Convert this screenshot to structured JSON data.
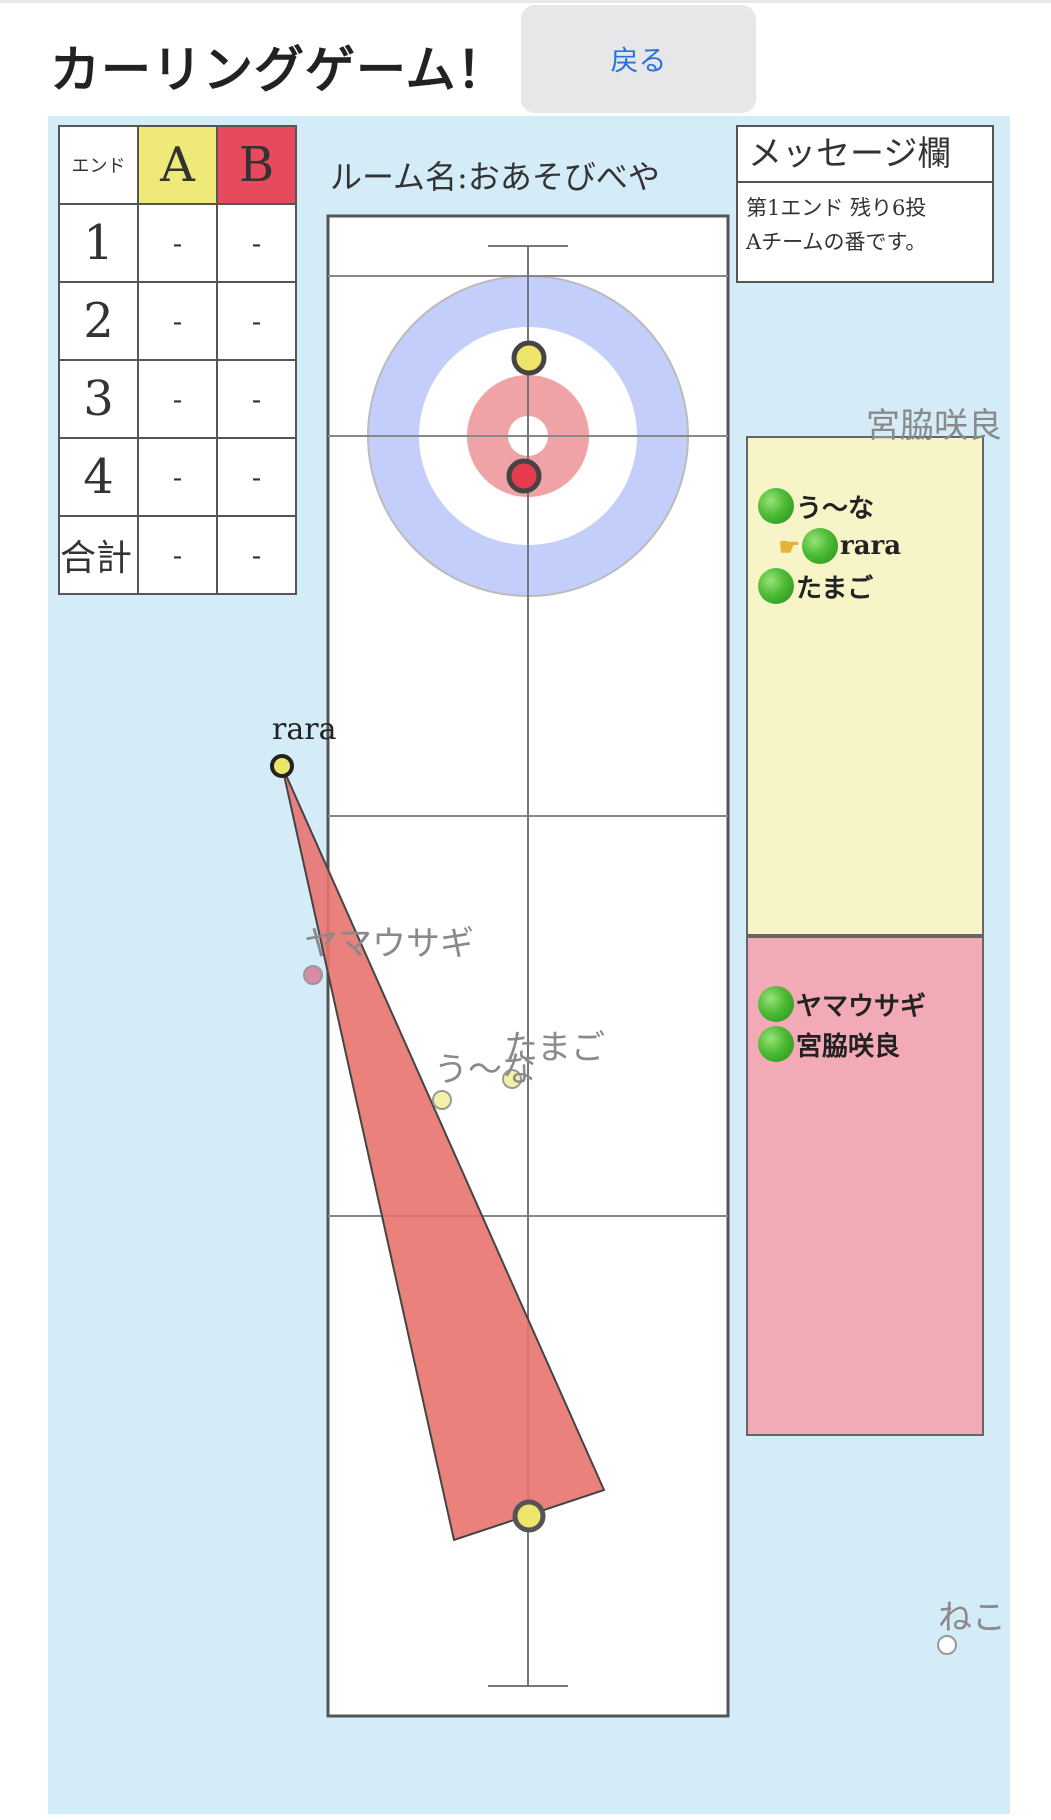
{
  "header": {
    "title": "カーリングゲーム！",
    "back_label": "戻る"
  },
  "score": {
    "end_header": "エンド",
    "team_a": "A",
    "team_b": "B",
    "rows": [
      {
        "end": "1",
        "a": "-",
        "b": "-"
      },
      {
        "end": "2",
        "a": "-",
        "b": "-"
      },
      {
        "end": "3",
        "a": "-",
        "b": "-"
      },
      {
        "end": "4",
        "a": "-",
        "b": "-"
      }
    ],
    "total_label": "合計",
    "total_a": "-",
    "total_b": "-"
  },
  "room_name": "ルーム名:おあそびべや",
  "messages": {
    "title": "メッセージ欄",
    "lines": [
      "第1エンド 残り6投",
      "Aチームの番です。"
    ]
  },
  "teams": {
    "a": {
      "color": "#f7f5c8",
      "players": [
        {
          "name": "う〜な",
          "current": false
        },
        {
          "name": "rara",
          "current": true
        },
        {
          "name": "たまご",
          "current": false
        }
      ]
    },
    "b": {
      "color": "#f2aab6",
      "players": [
        {
          "name": "ヤマウサギ"
        },
        {
          "name": "宮脇咲良"
        }
      ]
    }
  },
  "active_player": "rara",
  "field_players": {
    "yamausagi": "ヤマウサギ",
    "una": "う〜な",
    "tamago": "たまご",
    "miyawaki": "宮脇咲良",
    "neko": "ねこ"
  },
  "colors": {
    "ice": "#d4ebf8",
    "house_outer": "#c3cffa",
    "house_inner": "#efa3a6",
    "stone_yellow": "#eee46a",
    "stone_red": "#e63a4e",
    "aim": "#e8736f"
  }
}
